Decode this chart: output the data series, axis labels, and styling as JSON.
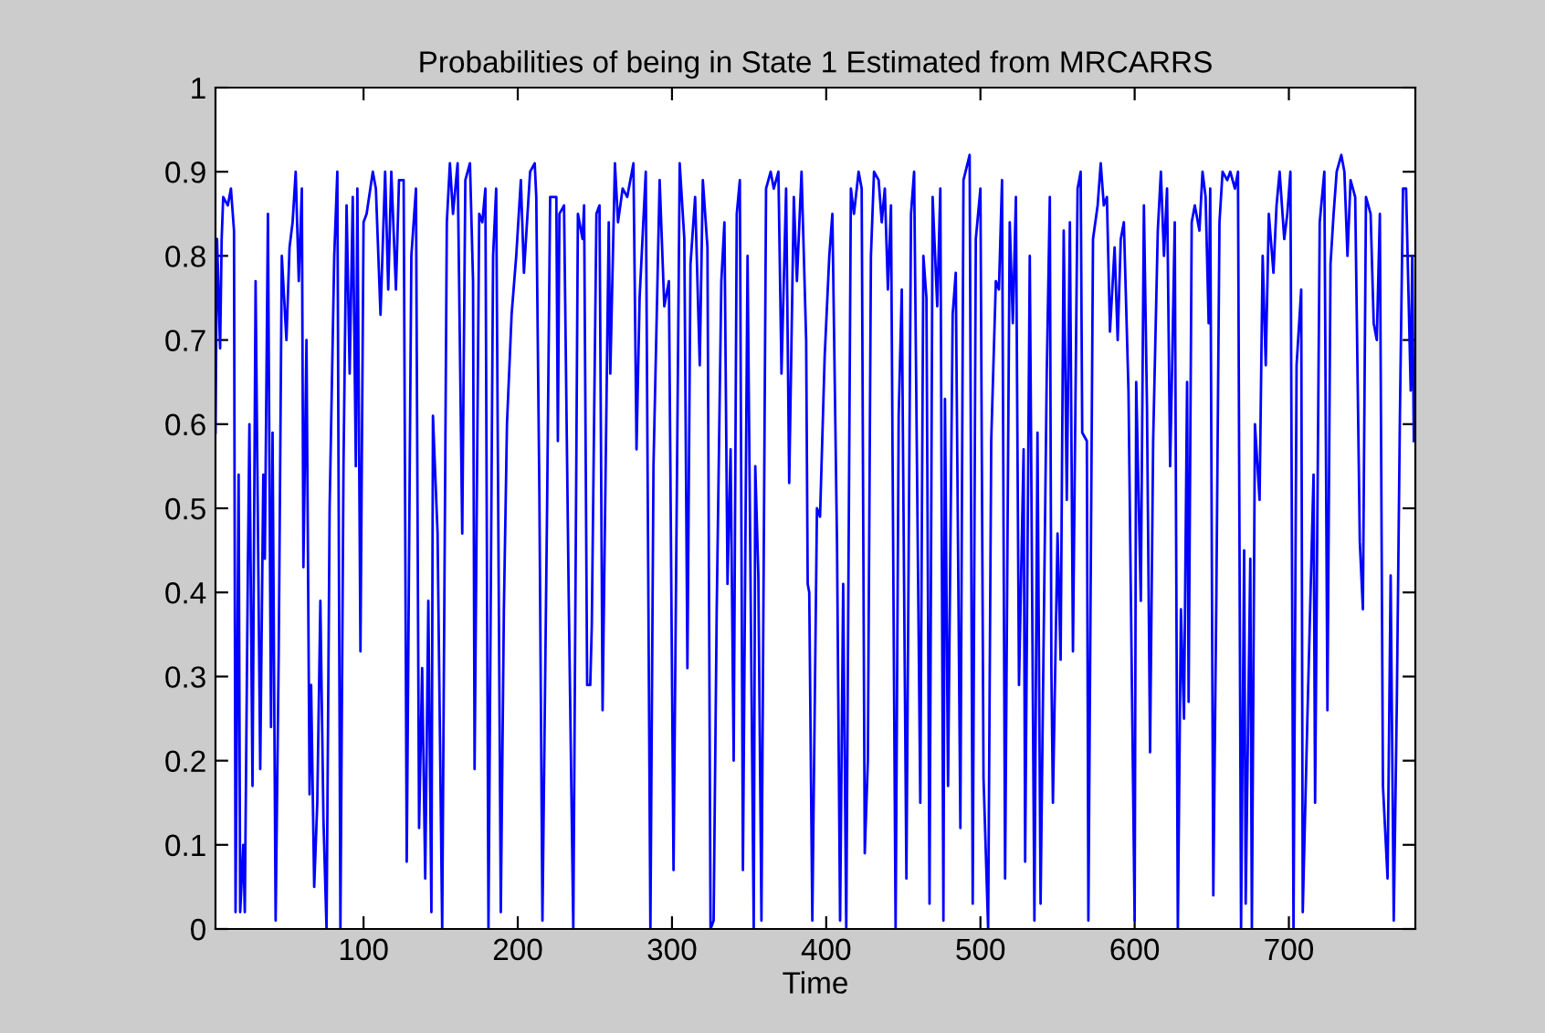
{
  "chart_data": {
    "type": "line",
    "title": "Probabilities of being in State 1 Estimated from MRCARRS",
    "xlabel": "Time",
    "xlim": [
      4,
      782
    ],
    "ylim": [
      0,
      1
    ],
    "xticks": [
      100,
      200,
      300,
      400,
      500,
      600,
      700
    ],
    "yticks": [
      0,
      0.1,
      0.2,
      0.3,
      0.4,
      0.5,
      0.6,
      0.7,
      0.8,
      0.9,
      1
    ],
    "grid": false,
    "marker": "none",
    "line_style": "solid",
    "series": [
      {
        "color": "#0000ff",
        "x": [
          4,
          5,
          7,
          8,
          9,
          12,
          14,
          16,
          17,
          19,
          20,
          22,
          23,
          25,
          26,
          28,
          30,
          33,
          35,
          36,
          38,
          40,
          41,
          43,
          45,
          47,
          50,
          52,
          54,
          56,
          58,
          60,
          61,
          63,
          65,
          66,
          68,
          70,
          72,
          74,
          76,
          78,
          81,
          83,
          85,
          87,
          89,
          91,
          93,
          95,
          96,
          98,
          100,
          102,
          106,
          108,
          111,
          114,
          116,
          118,
          121,
          123,
          126,
          128,
          131,
          134,
          136,
          138,
          140,
          142,
          144,
          145,
          148,
          151,
          154,
          156,
          158,
          161,
          164,
          166,
          169,
          171,
          172,
          175,
          177,
          179,
          181,
          184,
          186,
          189,
          191,
          193,
          196,
          199,
          202,
          204,
          208,
          211,
          212,
          214,
          216,
          219,
          221,
          225,
          226,
          227,
          230,
          233,
          236,
          239,
          242,
          243,
          245,
          247,
          248,
          251,
          253,
          255,
          259,
          260,
          263,
          265,
          268,
          271,
          275,
          277,
          279,
          283,
          286,
          288,
          292,
          295,
          298,
          301,
          305,
          308,
          310,
          312,
          315,
          318,
          320,
          323,
          325,
          327,
          329,
          332,
          334,
          336,
          338,
          340,
          342,
          344,
          346,
          349,
          353,
          354,
          356,
          358,
          361,
          364,
          366,
          369,
          371,
          374,
          376,
          379,
          381,
          384,
          387,
          388,
          389,
          391,
          394,
          396,
          399,
          402,
          404,
          407,
          409,
          411,
          413,
          416,
          418,
          421,
          423,
          425,
          427,
          429,
          431,
          434,
          436,
          438,
          440,
          442,
          445,
          447,
          449,
          452,
          455,
          457,
          461,
          463,
          465,
          467,
          469,
          472,
          474,
          476,
          477,
          479,
          482,
          484,
          487,
          489,
          493,
          495,
          497,
          500,
          502,
          505,
          507,
          510,
          512,
          514,
          516,
          519,
          521,
          523,
          525,
          528,
          529,
          532,
          535,
          537,
          539,
          543,
          545,
          546,
          547,
          550,
          552,
          554,
          556,
          558,
          560,
          563,
          565,
          566,
          569,
          570,
          573,
          576,
          578,
          580,
          582,
          584,
          587,
          589,
          591,
          593,
          596,
          600,
          601,
          604,
          606,
          608,
          610,
          612,
          615,
          617,
          619,
          621,
          623,
          624,
          626,
          628,
          630,
          632,
          634,
          635,
          637,
          639,
          642,
          644,
          646,
          648,
          649,
          651,
          653,
          655,
          657,
          660,
          662,
          665,
          667,
          669,
          671,
          672,
          675,
          676,
          678,
          681,
          683,
          685,
          687,
          690,
          692,
          694,
          697,
          699,
          701,
          703,
          705,
          708,
          709,
          712,
          716,
          717,
          720,
          723,
          725,
          727,
          729,
          731,
          734,
          736,
          738,
          740,
          743,
          746,
          748,
          750,
          753,
          755,
          757,
          759,
          761,
          764,
          766,
          768,
          770,
          772,
          774,
          776,
          779,
          780,
          781
        ],
        "values": [
          0.59,
          0.82,
          0.69,
          0.82,
          0.87,
          0.86,
          0.88,
          0.83,
          0.02,
          0.54,
          0.02,
          0.1,
          0.02,
          0.43,
          0.6,
          0.17,
          0.77,
          0.19,
          0.54,
          0.44,
          0.85,
          0.24,
          0.59,
          0.01,
          0.33,
          0.8,
          0.7,
          0.81,
          0.84,
          0.9,
          0.77,
          0.88,
          0.43,
          0.7,
          0.16,
          0.29,
          0.05,
          0.15,
          0.39,
          0.13,
          0,
          0.5,
          0.8,
          0.9,
          0,
          0.55,
          0.86,
          0.66,
          0.87,
          0.55,
          0.88,
          0.33,
          0.84,
          0.85,
          0.9,
          0.88,
          0.73,
          0.9,
          0.76,
          0.9,
          0.76,
          0.89,
          0.89,
          0.08,
          0.8,
          0.88,
          0.12,
          0.31,
          0.06,
          0.39,
          0.02,
          0.61,
          0.47,
          0,
          0.84,
          0.91,
          0.85,
          0.91,
          0.47,
          0.89,
          0.91,
          0.77,
          0.19,
          0.85,
          0.84,
          0.88,
          0,
          0.8,
          0.88,
          0.02,
          0.38,
          0.6,
          0.73,
          0.8,
          0.89,
          0.78,
          0.9,
          0.91,
          0.87,
          0.52,
          0.01,
          0.5,
          0.87,
          0.87,
          0.58,
          0.85,
          0.86,
          0.4,
          0,
          0.85,
          0.82,
          0.86,
          0.29,
          0.29,
          0.36,
          0.85,
          0.86,
          0.26,
          0.84,
          0.66,
          0.91,
          0.84,
          0.88,
          0.87,
          0.91,
          0.57,
          0.75,
          0.9,
          0,
          0.55,
          0.89,
          0.74,
          0.77,
          0.07,
          0.91,
          0.82,
          0.31,
          0.79,
          0.87,
          0.67,
          0.89,
          0.81,
          0,
          0.01,
          0.38,
          0.77,
          0.84,
          0.41,
          0.57,
          0.2,
          0.85,
          0.89,
          0.07,
          0.8,
          0,
          0.55,
          0.42,
          0.01,
          0.88,
          0.9,
          0.88,
          0.9,
          0.66,
          0.88,
          0.53,
          0.87,
          0.77,
          0.9,
          0.7,
          0.41,
          0.4,
          0.01,
          0.5,
          0.49,
          0.68,
          0.8,
          0.85,
          0.46,
          0.01,
          0.41,
          0,
          0.88,
          0.85,
          0.9,
          0.88,
          0.09,
          0.2,
          0.8,
          0.9,
          0.89,
          0.84,
          0.88,
          0.76,
          0.86,
          0,
          0.61,
          0.76,
          0.06,
          0.85,
          0.9,
          0.15,
          0.8,
          0.75,
          0.03,
          0.87,
          0.74,
          0.88,
          0.01,
          0.63,
          0.17,
          0.73,
          0.78,
          0.12,
          0.89,
          0.92,
          0.03,
          0.82,
          0.88,
          0.18,
          0,
          0.58,
          0.77,
          0.76,
          0.89,
          0.06,
          0.84,
          0.72,
          0.87,
          0.29,
          0.57,
          0.08,
          0.8,
          0.01,
          0.59,
          0.03,
          0.66,
          0.87,
          0.31,
          0.15,
          0.47,
          0.32,
          0.83,
          0.51,
          0.84,
          0.33,
          0.88,
          0.9,
          0.59,
          0.58,
          0.01,
          0.82,
          0.86,
          0.91,
          0.86,
          0.87,
          0.71,
          0.81,
          0.7,
          0.82,
          0.84,
          0.64,
          0.01,
          0.65,
          0.39,
          0.86,
          0.62,
          0.21,
          0.58,
          0.83,
          0.9,
          0.8,
          0.88,
          0.55,
          0.64,
          0.84,
          0,
          0.38,
          0.25,
          0.65,
          0.27,
          0.84,
          0.86,
          0.83,
          0.9,
          0.87,
          0.72,
          0.88,
          0.04,
          0.4,
          0.84,
          0.9,
          0.89,
          0.9,
          0.88,
          0.9,
          0,
          0.45,
          0.03,
          0.44,
          0,
          0.6,
          0.51,
          0.8,
          0.67,
          0.85,
          0.78,
          0.86,
          0.9,
          0.82,
          0.85,
          0.9,
          0,
          0.67,
          0.76,
          0.02,
          0.25,
          0.54,
          0.15,
          0.84,
          0.9,
          0.26,
          0.79,
          0.85,
          0.9,
          0.92,
          0.9,
          0.8,
          0.89,
          0.87,
          0.46,
          0.38,
          0.87,
          0.85,
          0.72,
          0.7,
          0.85,
          0.17,
          0.06,
          0.42,
          0.01,
          0.27,
          0.61,
          0.88,
          0.88,
          0.64,
          0.8,
          0.58
        ]
      }
    ]
  }
}
